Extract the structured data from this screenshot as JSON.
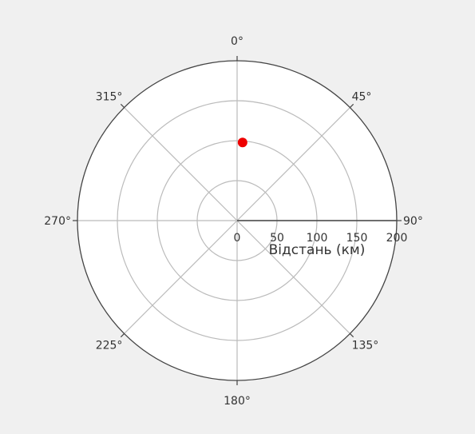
{
  "chart_data": {
    "type": "scatter",
    "subtype": "polar",
    "radial_axis": {
      "title": "Відстань (км)",
      "range": [
        0,
        200
      ],
      "ticks": [
        0,
        50,
        100,
        150,
        200
      ],
      "tick_labels": [
        "0",
        "50",
        "100",
        "150",
        "200"
      ]
    },
    "angular_axis": {
      "direction": "clockwise",
      "rotation_zero": "top",
      "ticks": [
        0,
        45,
        90,
        135,
        180,
        225,
        270,
        315
      ],
      "tick_labels": [
        "0°",
        "45°",
        "90°",
        "135°",
        "180°",
        "225°",
        "270°",
        "315°"
      ]
    },
    "series": [
      {
        "points": [
          {
            "r": 98,
            "theta": 4
          }
        ],
        "color": "#ee0000"
      }
    ],
    "grid": true,
    "colors": {
      "background": "#f0f0f0",
      "plot": "#ffffff",
      "grid": "#bbbbbb",
      "outline": "#444444",
      "axis_line": "#444444",
      "text": "#333333"
    }
  }
}
